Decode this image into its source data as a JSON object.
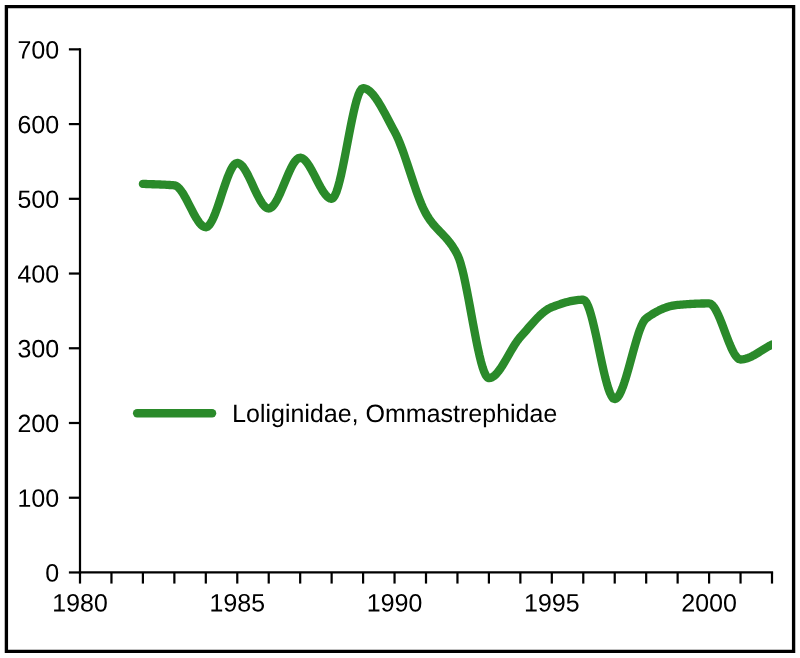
{
  "chart_data": {
    "type": "line",
    "x": [
      1982,
      1983,
      1984,
      1985,
      1986,
      1987,
      1988,
      1989,
      1990,
      1991,
      1992,
      1993,
      1994,
      1995,
      1996,
      1997,
      1998,
      1999,
      2000,
      2001,
      2002
    ],
    "series": [
      {
        "name": "Loliginidae, Ommastrephidae",
        "color": "#2a8a2a",
        "values": [
          520,
          518,
          462,
          548,
          487,
          555,
          500,
          648,
          590,
          480,
          425,
          260,
          315,
          355,
          365,
          232,
          340,
          358,
          360,
          285,
          305
        ]
      }
    ],
    "xlim": [
      1980,
      2002
    ],
    "xticks": [
      1980,
      {
        "value": 1981,
        "label": null
      },
      {
        "value": 1982,
        "label": null
      },
      {
        "value": 1983,
        "label": null
      },
      {
        "value": 1984,
        "label": null
      },
      1985,
      {
        "value": 1986,
        "label": null
      },
      {
        "value": 1987,
        "label": null
      },
      {
        "value": 1988,
        "label": null
      },
      {
        "value": 1989,
        "label": null
      },
      1990,
      {
        "value": 1991,
        "label": null
      },
      {
        "value": 1992,
        "label": null
      },
      {
        "value": 1993,
        "label": null
      },
      {
        "value": 1994,
        "label": null
      },
      1995,
      {
        "value": 1996,
        "label": null
      },
      {
        "value": 1997,
        "label": null
      },
      {
        "value": 1998,
        "label": null
      },
      {
        "value": 1999,
        "label": null
      },
      2000,
      {
        "value": 2001,
        "label": null
      },
      {
        "value": 2002,
        "label": null
      }
    ],
    "ylim": [
      0,
      700
    ],
    "yticks": [
      0,
      100,
      200,
      300,
      400,
      500,
      600,
      700
    ],
    "grid": false,
    "legend": "center left",
    "marker": "none",
    "line_style": "solid"
  }
}
